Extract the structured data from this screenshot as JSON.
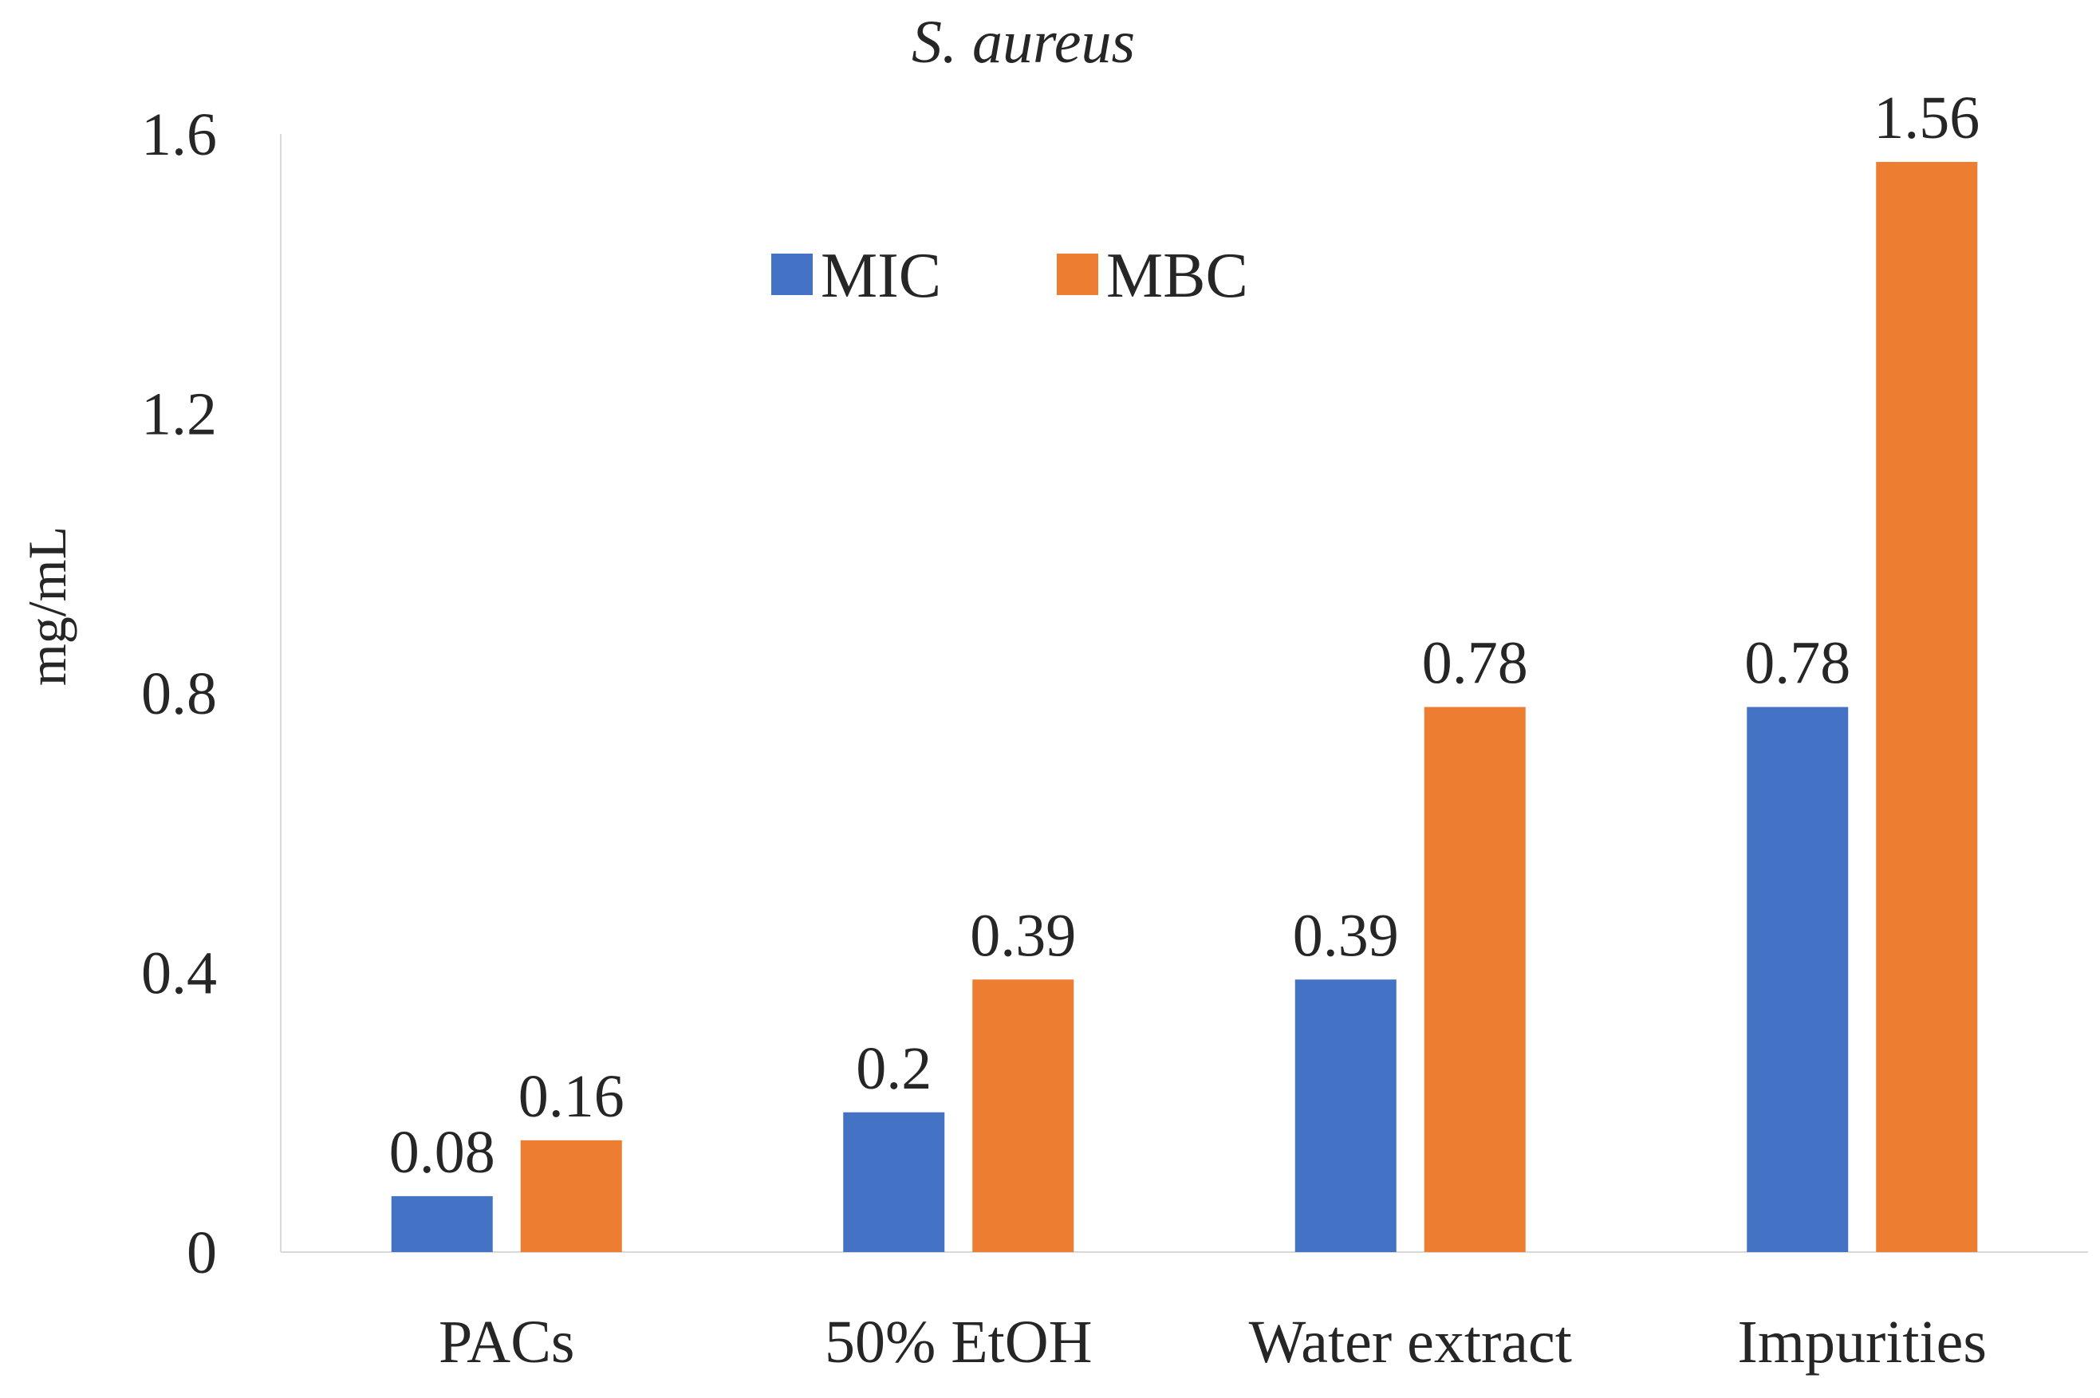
{
  "chart_data": {
    "type": "bar",
    "title": "S. aureus",
    "xlabel": "",
    "ylabel": "mg/mL",
    "ylim": [
      0,
      1.6
    ],
    "yticks": [
      "0",
      "0.4",
      "0.8",
      "1.2",
      "1.6"
    ],
    "grid": false,
    "legend_position": "top-center",
    "categories": [
      "PACs",
      "50%  EtOH",
      "Water extract",
      "Impurities"
    ],
    "series": [
      {
        "name": "MIC",
        "color": "#4472c4",
        "values": [
          0.08,
          0.2,
          0.39,
          0.78
        ],
        "labels": [
          "0.08",
          "0.2",
          "0.39",
          "0.78"
        ]
      },
      {
        "name": "MBC",
        "color": "#ed7d31",
        "values": [
          0.16,
          0.39,
          0.78,
          1.56
        ],
        "labels": [
          "0.16",
          "0.39",
          "0.78",
          "1.56"
        ]
      }
    ]
  }
}
